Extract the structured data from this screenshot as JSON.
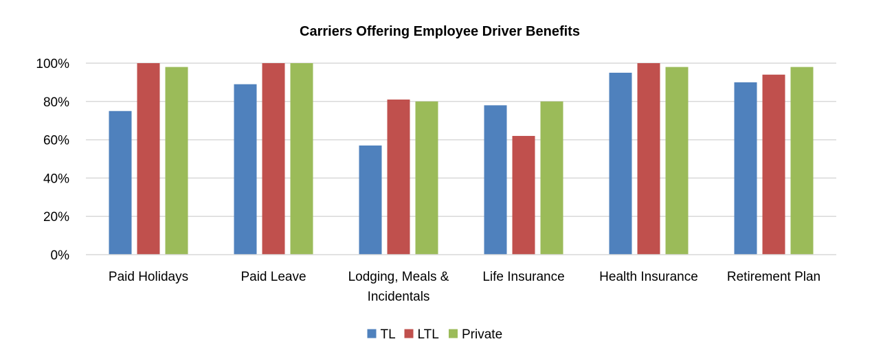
{
  "chart_data": {
    "type": "bar",
    "title": "Carriers Offering Employee Driver Benefits",
    "xlabel": "",
    "ylabel": "",
    "ylim": [
      0,
      100
    ],
    "yticks": [
      "0%",
      "20%",
      "40%",
      "60%",
      "80%",
      "100%"
    ],
    "ytick_values": [
      0,
      20,
      40,
      60,
      80,
      100
    ],
    "grid": true,
    "legend_position": "bottom",
    "categories": [
      [
        "Paid Holidays"
      ],
      [
        "Paid Leave"
      ],
      [
        "Lodging, Meals &",
        "Incidentals"
      ],
      [
        "Life Insurance"
      ],
      [
        "Health Insurance"
      ],
      [
        "Retirement Plan"
      ]
    ],
    "series": [
      {
        "name": "TL",
        "color": "#4f81bd",
        "values": [
          75,
          89,
          57,
          78,
          95,
          90
        ]
      },
      {
        "name": "LTL",
        "color": "#c0504d",
        "values": [
          100,
          100,
          81,
          62,
          100,
          94
        ]
      },
      {
        "name": "Private",
        "color": "#9bbb59",
        "values": [
          98,
          100,
          80,
          80,
          98,
          98
        ]
      }
    ]
  }
}
